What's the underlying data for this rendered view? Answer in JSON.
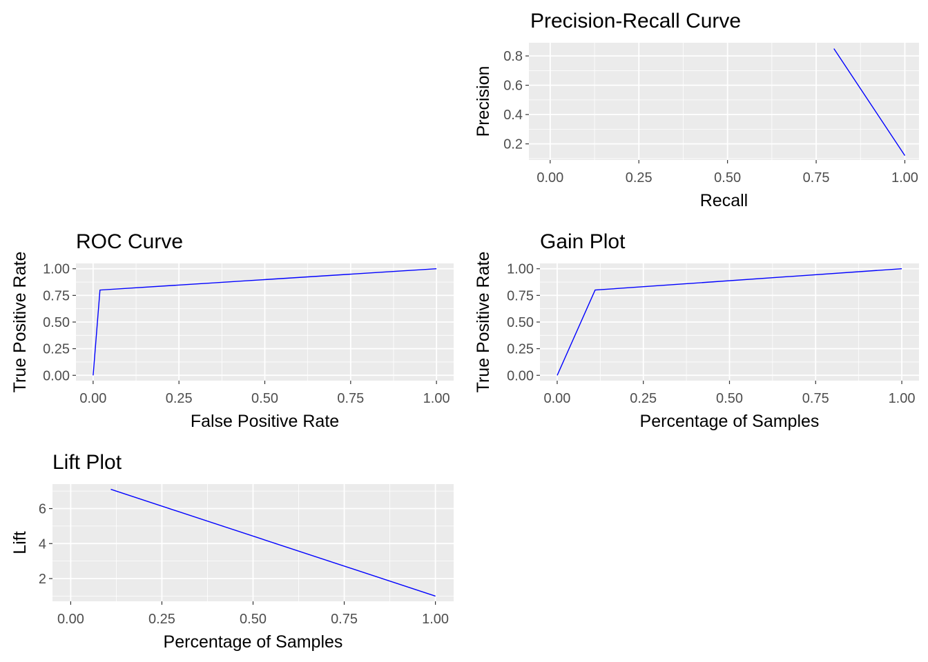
{
  "chart_data": [
    {
      "id": "pr",
      "type": "line",
      "title": "Precision-Recall Curve",
      "xlabel": "Recall",
      "ylabel": "Precision",
      "xlim": [
        -0.06,
        1.04
      ],
      "ylim": [
        0.09,
        0.89
      ],
      "xticks": [
        0,
        0.25,
        0.5,
        0.75,
        1
      ],
      "xtick_labels": [
        "0.00",
        "0.25",
        "0.50",
        "0.75",
        "1.00"
      ],
      "yticks": [
        0.2,
        0.4,
        0.6,
        0.8
      ],
      "ytick_labels": [
        "0.2",
        "0.4",
        "0.6",
        "0.8"
      ],
      "grid": true,
      "line_color": "#0000ff",
      "panel_color": "#ebebeb",
      "series": [
        {
          "x": [
            0.8,
            1.0
          ],
          "y": [
            0.85,
            0.12
          ]
        }
      ]
    },
    {
      "id": "roc",
      "type": "line",
      "title": "ROC Curve",
      "xlabel": "False Positive Rate",
      "ylabel": "True Positive Rate",
      "xlim": [
        -0.05,
        1.05
      ],
      "ylim": [
        -0.05,
        1.05
      ],
      "xticks": [
        0,
        0.25,
        0.5,
        0.75,
        1
      ],
      "xtick_labels": [
        "0.00",
        "0.25",
        "0.50",
        "0.75",
        "1.00"
      ],
      "yticks": [
        0,
        0.25,
        0.5,
        0.75,
        1
      ],
      "ytick_labels": [
        "0.00",
        "0.25",
        "0.50",
        "0.75",
        "1.00"
      ],
      "grid": true,
      "line_color": "#0000ff",
      "panel_color": "#ebebeb",
      "series": [
        {
          "x": [
            0,
            0.02,
            1
          ],
          "y": [
            0,
            0.8,
            1
          ]
        }
      ]
    },
    {
      "id": "gain",
      "type": "line",
      "title": "Gain Plot",
      "xlabel": "Percentage of Samples",
      "ylabel": "True Positive Rate",
      "xlim": [
        -0.05,
        1.05
      ],
      "ylim": [
        -0.05,
        1.05
      ],
      "xticks": [
        0,
        0.25,
        0.5,
        0.75,
        1
      ],
      "xtick_labels": [
        "0.00",
        "0.25",
        "0.50",
        "0.75",
        "1.00"
      ],
      "yticks": [
        0,
        0.25,
        0.5,
        0.75,
        1
      ],
      "ytick_labels": [
        "0.00",
        "0.25",
        "0.50",
        "0.75",
        "1.00"
      ],
      "grid": true,
      "line_color": "#0000ff",
      "panel_color": "#ebebeb",
      "series": [
        {
          "x": [
            0,
            0.11,
            1
          ],
          "y": [
            0,
            0.8,
            1
          ]
        }
      ]
    },
    {
      "id": "lift",
      "type": "line",
      "title": "Lift Plot",
      "xlabel": "Percentage of Samples",
      "ylabel": "Lift",
      "xlim": [
        -0.05,
        1.05
      ],
      "ylim": [
        0.7,
        7.4
      ],
      "xticks": [
        0,
        0.25,
        0.5,
        0.75,
        1
      ],
      "xtick_labels": [
        "0.00",
        "0.25",
        "0.50",
        "0.75",
        "1.00"
      ],
      "yticks": [
        2,
        4,
        6
      ],
      "ytick_labels": [
        "2",
        "4",
        "6"
      ],
      "grid": true,
      "line_color": "#0000ff",
      "panel_color": "#ebebeb",
      "series": [
        {
          "x": [
            0.11,
            1.0
          ],
          "y": [
            7.1,
            1.0
          ]
        }
      ]
    }
  ]
}
